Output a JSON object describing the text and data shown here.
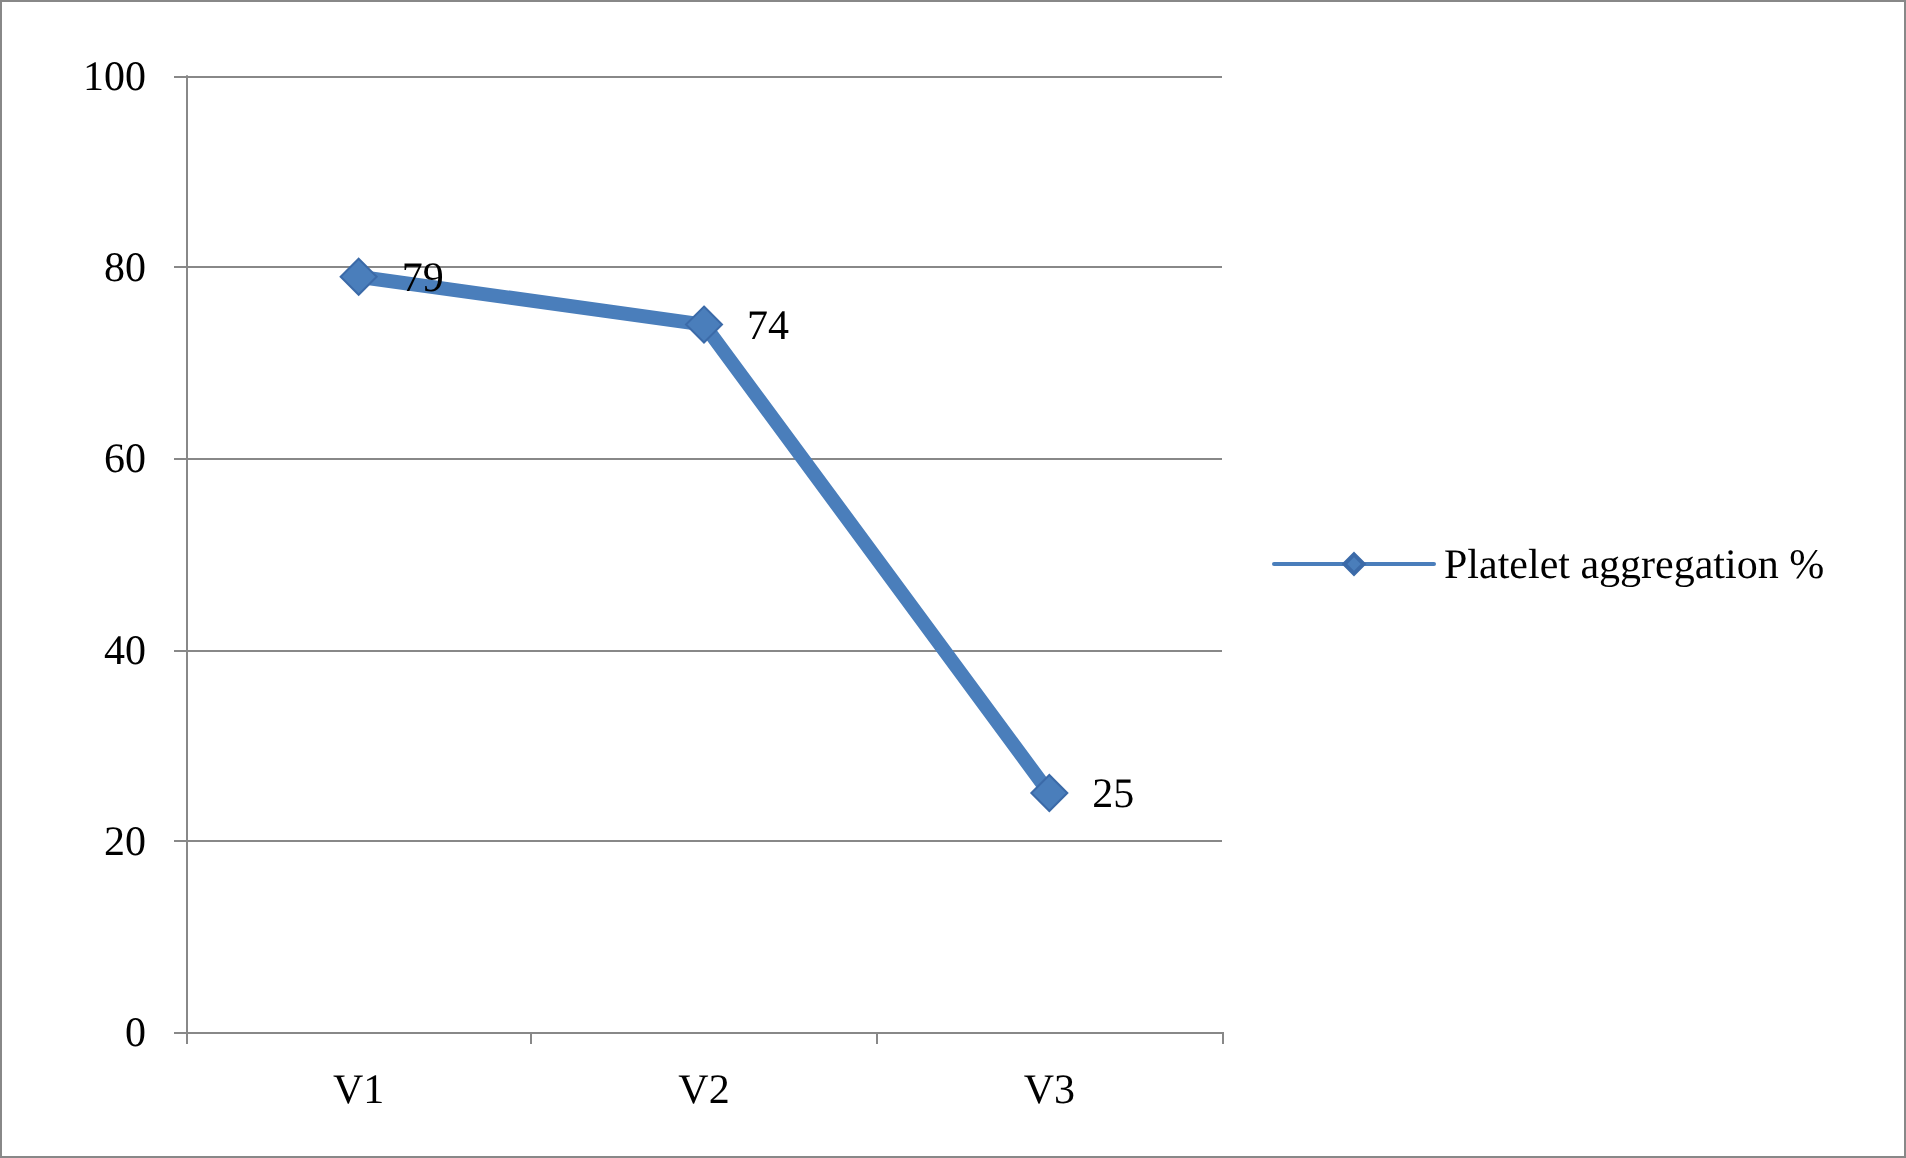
{
  "chart_data": {
    "type": "line",
    "categories": [
      "V1",
      "V2",
      "V3"
    ],
    "series": [
      {
        "name": "Platelet aggregation %",
        "color": "#4a7ebb",
        "values": [
          79,
          74,
          25
        ]
      }
    ],
    "ylim": [
      0,
      100
    ],
    "yticks": [
      0,
      20,
      40,
      60,
      80,
      100
    ],
    "grid": "y",
    "legend": "right",
    "marker": "diamond",
    "line_style": "solid",
    "data_labels": true
  }
}
